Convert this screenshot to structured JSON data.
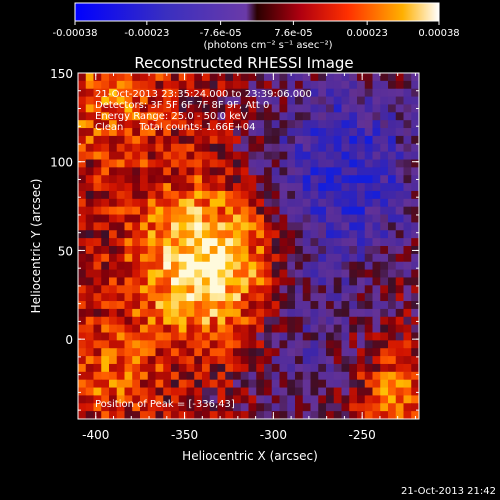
{
  "chart_data": {
    "type": "heatmap",
    "title": "Reconstructed RHESSI Image",
    "xlabel": "Heliocentric X (arcsec)",
    "ylabel": "Heliocentric Y (arcsec)",
    "xlim": [
      -410,
      -218
    ],
    "ylim": [
      -45,
      150
    ],
    "x_ticks": [
      -400,
      -350,
      -300,
      -250
    ],
    "y_ticks": [
      0,
      50,
      100,
      150
    ],
    "x_tick_labels": [
      "-400",
      "-350",
      "-300",
      "-250"
    ],
    "y_tick_labels": [
      "0",
      "50",
      "100",
      "150"
    ],
    "colorbar": {
      "range": [
        -0.00038,
        0.00038
      ],
      "tick_values": [
        -0.00038,
        -0.00023,
        -7.6e-05,
        7.6e-05,
        0.00023,
        0.00038
      ],
      "tick_labels": [
        "-0.00038",
        "-0.00023",
        "-7.6e-05",
        "7.6e-05",
        "0.00023",
        "0.00038"
      ],
      "unit_label": "(photons cm⁻² s⁻¹ asec⁻²)",
      "colors": [
        "#0000ff",
        "#5a2ca8",
        "#7a3ba6",
        "#b8001a",
        "#ff4000",
        "#ffc000",
        "#ffffff"
      ]
    },
    "annotations": [
      "21-Oct-2013 23:35:24.000 to 23:39:06.000",
      "Detectors: 3F 5F 6F 7F 8F 9F, Att 0",
      "Energy Range: 25.0 - 50.0 keV",
      "Clean     Total counts: 1.66E+04"
    ],
    "peak_label": "Position of Peak = [-336,43]",
    "peak": [
      -336,
      43
    ],
    "grid": false
  },
  "footer": {
    "timestamp": "21-Oct-2013 21:42"
  }
}
